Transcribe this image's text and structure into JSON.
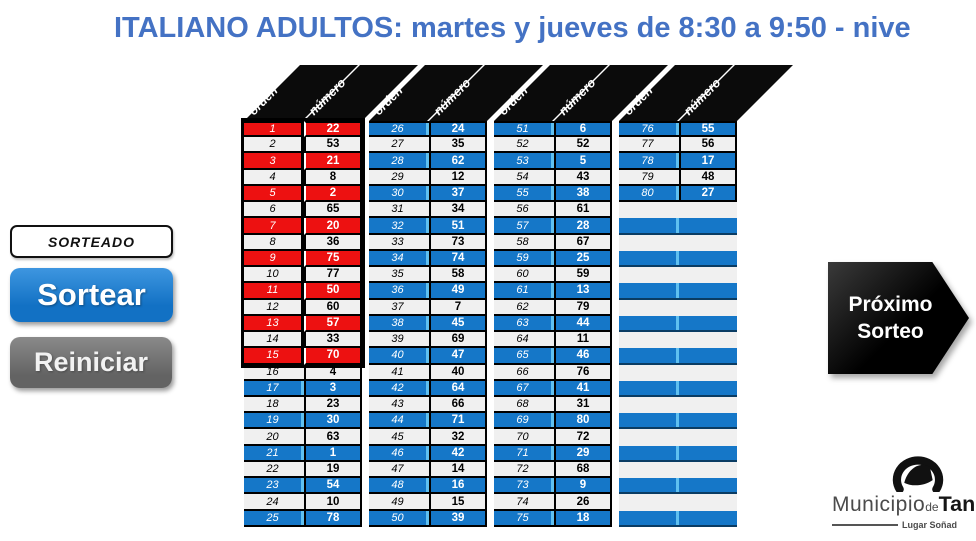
{
  "title": "ITALIANO ADULTOS: martes y jueves de 8:30 a 9:50 - nive",
  "colors": {
    "title_blue": "#4472C4",
    "drawn_red": "#ED1111",
    "row_blue": "#1577C8",
    "button_blue": "#1271C4",
    "button_gray": "#636363"
  },
  "left_panel": {
    "status_label": "SORTEADO",
    "draw_button": "Sortear",
    "reset_button": "Reiniciar"
  },
  "next_draw": {
    "line1": "Próximo",
    "line2": "Sorteo"
  },
  "logo": {
    "brand_regular": "Municipio",
    "brand_de": "de",
    "brand_bold": "Tan",
    "tagline": "Lugar Soñad"
  },
  "table": {
    "col_headers": [
      "orden",
      "número"
    ],
    "groups": [
      {
        "rows": [
          {
            "o": "1",
            "n": "22",
            "zone": true
          },
          {
            "o": "2",
            "n": "53",
            "zone": true
          },
          {
            "o": "3",
            "n": "21",
            "zone": true
          },
          {
            "o": "4",
            "n": "8",
            "zone": true
          },
          {
            "o": "5",
            "n": "2",
            "zone": true
          },
          {
            "o": "6",
            "n": "65",
            "zone": true
          },
          {
            "o": "7",
            "n": "20",
            "zone": true
          },
          {
            "o": "8",
            "n": "36",
            "zone": true
          },
          {
            "o": "9",
            "n": "75",
            "zone": true
          },
          {
            "o": "10",
            "n": "77",
            "zone": true
          },
          {
            "o": "11",
            "n": "50",
            "zone": true
          },
          {
            "o": "12",
            "n": "60",
            "zone": true
          },
          {
            "o": "13",
            "n": "57",
            "zone": true
          },
          {
            "o": "14",
            "n": "33",
            "zone": true
          },
          {
            "o": "15",
            "n": "70",
            "zone": true
          },
          {
            "o": "16",
            "n": "4"
          },
          {
            "o": "17",
            "n": "3"
          },
          {
            "o": "18",
            "n": "23"
          },
          {
            "o": "19",
            "n": "30"
          },
          {
            "o": "20",
            "n": "63"
          },
          {
            "o": "21",
            "n": "1"
          },
          {
            "o": "22",
            "n": "19"
          },
          {
            "o": "23",
            "n": "54"
          },
          {
            "o": "24",
            "n": "10"
          },
          {
            "o": "25",
            "n": "78"
          }
        ]
      },
      {
        "rows": [
          {
            "o": "26",
            "n": "24"
          },
          {
            "o": "27",
            "n": "35"
          },
          {
            "o": "28",
            "n": "62"
          },
          {
            "o": "29",
            "n": "12"
          },
          {
            "o": "30",
            "n": "37"
          },
          {
            "o": "31",
            "n": "34"
          },
          {
            "o": "32",
            "n": "51"
          },
          {
            "o": "33",
            "n": "73"
          },
          {
            "o": "34",
            "n": "74"
          },
          {
            "o": "35",
            "n": "58"
          },
          {
            "o": "36",
            "n": "49"
          },
          {
            "o": "37",
            "n": "7"
          },
          {
            "o": "38",
            "n": "45"
          },
          {
            "o": "39",
            "n": "69"
          },
          {
            "o": "40",
            "n": "47"
          },
          {
            "o": "41",
            "n": "40"
          },
          {
            "o": "42",
            "n": "64"
          },
          {
            "o": "43",
            "n": "66"
          },
          {
            "o": "44",
            "n": "71"
          },
          {
            "o": "45",
            "n": "32"
          },
          {
            "o": "46",
            "n": "42"
          },
          {
            "o": "47",
            "n": "14"
          },
          {
            "o": "48",
            "n": "16"
          },
          {
            "o": "49",
            "n": "15"
          },
          {
            "o": "50",
            "n": "39"
          }
        ]
      },
      {
        "rows": [
          {
            "o": "51",
            "n": "6"
          },
          {
            "o": "52",
            "n": "52"
          },
          {
            "o": "53",
            "n": "5"
          },
          {
            "o": "54",
            "n": "43"
          },
          {
            "o": "55",
            "n": "38"
          },
          {
            "o": "56",
            "n": "61"
          },
          {
            "o": "57",
            "n": "28"
          },
          {
            "o": "58",
            "n": "67"
          },
          {
            "o": "59",
            "n": "25"
          },
          {
            "o": "60",
            "n": "59"
          },
          {
            "o": "61",
            "n": "13"
          },
          {
            "o": "62",
            "n": "79"
          },
          {
            "o": "63",
            "n": "44"
          },
          {
            "o": "64",
            "n": "11"
          },
          {
            "o": "65",
            "n": "46"
          },
          {
            "o": "66",
            "n": "76"
          },
          {
            "o": "67",
            "n": "41"
          },
          {
            "o": "68",
            "n": "31"
          },
          {
            "o": "69",
            "n": "80"
          },
          {
            "o": "70",
            "n": "72"
          },
          {
            "o": "71",
            "n": "29"
          },
          {
            "o": "72",
            "n": "68"
          },
          {
            "o": "73",
            "n": "9"
          },
          {
            "o": "74",
            "n": "26"
          },
          {
            "o": "75",
            "n": "18"
          }
        ]
      },
      {
        "rows": [
          {
            "o": "76",
            "n": "55"
          },
          {
            "o": "77",
            "n": "56"
          },
          {
            "o": "78",
            "n": "17"
          },
          {
            "o": "79",
            "n": "48"
          },
          {
            "o": "80",
            "n": "27"
          }
        ],
        "empty_rows": 20
      }
    ]
  }
}
